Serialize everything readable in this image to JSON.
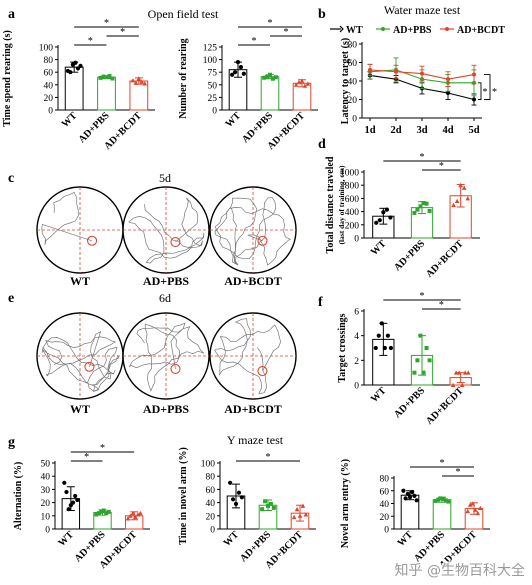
{
  "colors": {
    "wt": "#000000",
    "pbs": "#2ea62e",
    "bcdt": "#e0442a",
    "path": "#777777",
    "guide": "#e0442a"
  },
  "groups": [
    "WT",
    "AD+PBS",
    "AD+BCDT"
  ],
  "sig": "*",
  "titles": {
    "open_field": "Open field test",
    "water_maze": "Water maze test",
    "y_maze": "Y maze test",
    "c_day": "5d",
    "e_day": "6d"
  },
  "panel_letters": {
    "a": "a",
    "b": "b",
    "c": "c",
    "d": "d",
    "e": "e",
    "f": "f",
    "g": "g"
  },
  "legend_b": [
    "WT",
    "AD+PBS",
    "AD+BCDT"
  ],
  "watermark": "知乎 @生物百科大全",
  "chart_data": [
    {
      "id": "a1",
      "type": "bar",
      "categories": [
        "WT",
        "AD+PBS",
        "AD+BCDT"
      ],
      "values": [
        68,
        52,
        46
      ],
      "errors": [
        8,
        2,
        5
      ],
      "points": [
        [
          62,
          60,
          72,
          75,
          66,
          70
        ],
        [
          51,
          53,
          52,
          54,
          50
        ],
        [
          47,
          43,
          50,
          45,
          42
        ]
      ],
      "ylabel": "Time spend rearing (s)",
      "yticks": [
        0,
        20,
        40,
        60,
        80,
        100
      ],
      "ylim": [
        0,
        100
      ],
      "sig": [
        [
          0,
          1
        ],
        [
          0,
          2
        ],
        [
          1,
          2
        ]
      ]
    },
    {
      "id": "a2",
      "type": "bar",
      "categories": [
        "WT",
        "AD+PBS",
        "AD+BCDT"
      ],
      "values": [
        80,
        66,
        53
      ],
      "errors": [
        15,
        4,
        7
      ],
      "points": [
        [
          70,
          75,
          95,
          85,
          72
        ],
        [
          64,
          66,
          70,
          62,
          65
        ],
        [
          50,
          55,
          58,
          48,
          52
        ]
      ],
      "ylabel": "Number of rearing",
      "yticks": [
        0,
        25,
        50,
        75,
        100,
        125
      ],
      "ylim": [
        0,
        125
      ],
      "sig": [
        [
          0,
          1
        ],
        [
          0,
          2
        ],
        [
          1,
          2
        ]
      ]
    },
    {
      "id": "b",
      "type": "line",
      "x": [
        "1d",
        "2d",
        "3d",
        "4d",
        "5d"
      ],
      "series": [
        {
          "name": "WT",
          "values": [
            46,
            42,
            32,
            27,
            20
          ],
          "errors": [
            4,
            4,
            6,
            7,
            6
          ]
        },
        {
          "name": "AD+PBS",
          "values": [
            50,
            52,
            42,
            38,
            38
          ],
          "errors": [
            8,
            13,
            10,
            9,
            14
          ]
        },
        {
          "name": "AD+BCDT",
          "values": [
            52,
            50,
            48,
            42,
            47
          ],
          "errors": [
            6,
            7,
            8,
            8,
            10
          ]
        }
      ],
      "title": "Water maze test",
      "ylabel": "Latency to target (s)",
      "yticks": [
        0,
        20,
        40,
        60,
        80
      ],
      "ylim": [
        0,
        80
      ]
    },
    {
      "id": "d",
      "type": "bar",
      "categories": [
        "WT",
        "AD+PBS",
        "AD+BCDT"
      ],
      "values": [
        330,
        460,
        640
      ],
      "errors": [
        120,
        90,
        170
      ],
      "points": [
        [
          230,
          270,
          390,
          430,
          310
        ],
        [
          380,
          430,
          480,
          530,
          520,
          410
        ],
        [
          500,
          560,
          800,
          760,
          600
        ]
      ],
      "ylabel": "Total distance traveled",
      "ylabel2": "(last day of training, cm)",
      "yticks": [
        0,
        200,
        400,
        600,
        800,
        1000
      ],
      "ylim": [
        0,
        1000
      ],
      "sig": [
        [
          0,
          2
        ],
        [
          1,
          2
        ]
      ]
    },
    {
      "id": "f",
      "type": "bar",
      "categories": [
        "WT",
        "AD+PBS",
        "AD+BCDT"
      ],
      "values": [
        3.7,
        2.4,
        0.6
      ],
      "errors": [
        1.3,
        1.6,
        0.4
      ],
      "points": [
        [
          3,
          4,
          5,
          3,
          4,
          3
        ],
        [
          1,
          2,
          4,
          1,
          3,
          2
        ],
        [
          0,
          1,
          1,
          0,
          1,
          1
        ]
      ],
      "ylabel": "Target crossings",
      "yticks": [
        0,
        2,
        4,
        6
      ],
      "ylim": [
        0,
        6
      ],
      "sig": [
        [
          0,
          2
        ],
        [
          1,
          2
        ]
      ]
    },
    {
      "id": "g1",
      "type": "bar",
      "categories": [
        "WT",
        "AD+PBS",
        "AD+BCDT"
      ],
      "values": [
        23,
        12.5,
        10
      ],
      "errors": [
        9,
        2,
        3
      ],
      "points": [
        [
          35,
          28,
          15,
          18,
          20,
          25,
          22
        ],
        [
          11,
          12,
          13,
          14,
          12,
          13
        ],
        [
          8,
          10,
          12,
          9,
          11,
          12
        ]
      ],
      "ylabel": "Alternation (%)",
      "yticks": [
        0,
        10,
        20,
        30,
        40,
        50
      ],
      "ylim": [
        0,
        50
      ],
      "sig": [
        [
          0,
          1
        ],
        [
          0,
          2
        ]
      ]
    },
    {
      "id": "g2",
      "type": "bar",
      "categories": [
        "WT",
        "AD+PBS",
        "AD+BCDT"
      ],
      "values": [
        50,
        36,
        24
      ],
      "errors": [
        18,
        8,
        12
      ],
      "points": [
        [
          70,
          45,
          38,
          55,
          48
        ],
        [
          30,
          42,
          35,
          38,
          32
        ],
        [
          18,
          30,
          20,
          35,
          22
        ]
      ],
      "ylabel": "Time in novel arm (%)",
      "yticks": [
        0,
        20,
        40,
        60,
        80,
        100
      ],
      "ylim": [
        0,
        100
      ],
      "sig": [
        [
          0,
          2
        ]
      ]
    },
    {
      "id": "g3",
      "type": "bar",
      "categories": [
        "WT",
        "AD+PBS",
        "AD+BCDT"
      ],
      "values": [
        53,
        46,
        32
      ],
      "errors": [
        7,
        4,
        9
      ],
      "points": [
        [
          60,
          48,
          55,
          50,
          58,
          52,
          45
        ],
        [
          44,
          46,
          48,
          47,
          45,
          43
        ],
        [
          28,
          38,
          40,
          30,
          25,
          33
        ]
      ],
      "ylabel": "Novel arm entry (%)",
      "yticks": [
        0,
        20,
        40,
        60,
        80
      ],
      "ylim": [
        0,
        80
      ],
      "sig": [
        [
          0,
          2
        ],
        [
          1,
          2
        ]
      ]
    }
  ]
}
